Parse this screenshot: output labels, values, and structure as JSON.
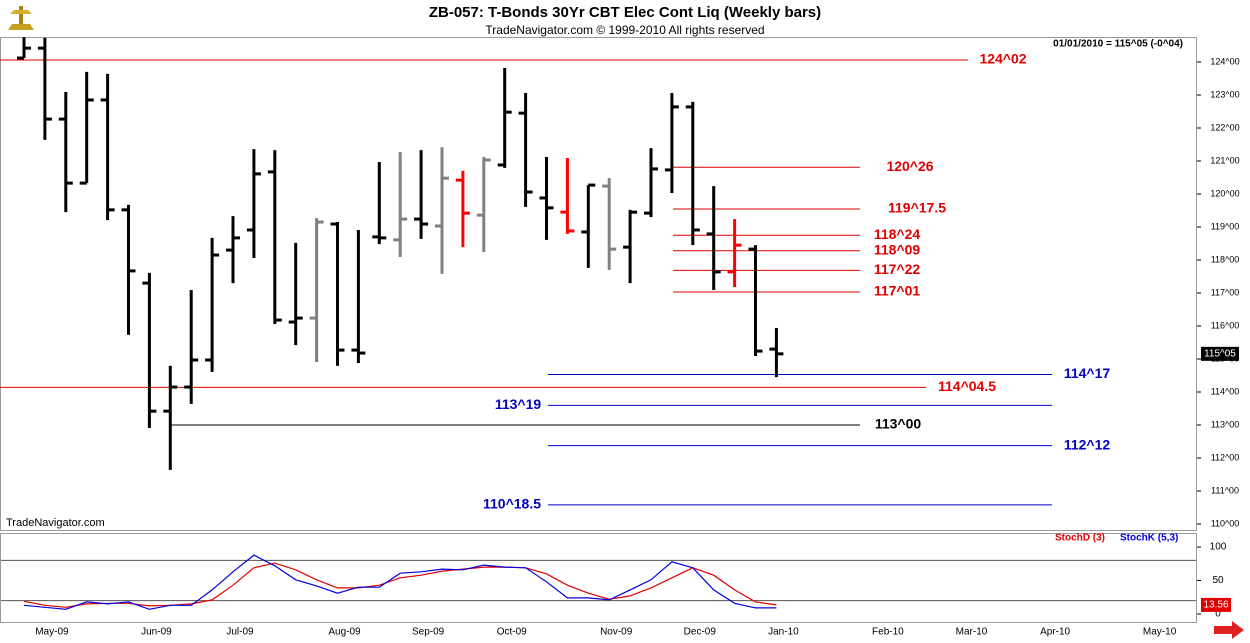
{
  "chart_data": [
    {
      "type": "ohlc",
      "title": "ZB-057:  T-Bonds 30Yr CBT Elec Cont Liq  (Weekly bars)",
      "subtitle": "TradeNavigator.com © 1999-2010 All rights reserved",
      "quote": "01/01/2010 = 115^05 (-0^04)",
      "watermark": "TradeNavigator.com",
      "categories": [
        null,
        "May-09",
        null,
        null,
        null,
        null,
        "Jun-09",
        null,
        null,
        null,
        "Jul-09",
        null,
        null,
        null,
        null,
        "Aug-09",
        null,
        null,
        null,
        "Sep-09",
        null,
        null,
        null,
        "Oct-09",
        null,
        null,
        null,
        null,
        "Nov-09",
        null,
        null,
        null,
        "Dec-09",
        null,
        null,
        null,
        "Jan-10",
        null,
        null,
        null,
        null,
        "Feb-10",
        null,
        null,
        null,
        "Mar-10",
        null,
        null,
        null,
        "Apr-10",
        null,
        null,
        null,
        null,
        "May-10",
        null,
        null
      ],
      "open": [
        124.12,
        124.42,
        122.27,
        120.33,
        122.85,
        119.52,
        117.3,
        113.42,
        114.15,
        114.97,
        118.3,
        118.91,
        120.67,
        116.12,
        116.24,
        119.09,
        115.27,
        118.7,
        118.61,
        119.24,
        119.03,
        120.42,
        119.36,
        120.88,
        122.45,
        119.88,
        119.45,
        118.85,
        120.24,
        118.39,
        119.42,
        120.73,
        122.64,
        118.79,
        117.64,
        118.33,
        115.3,
        null,
        null,
        null,
        null,
        null,
        null,
        null,
        null,
        null,
        null,
        null,
        null,
        null,
        null,
        null,
        null,
        null,
        null,
        null,
        null
      ],
      "high": [
        124.75,
        124.73,
        123.09,
        123.7,
        123.64,
        119.67,
        117.61,
        114.79,
        117.09,
        118.67,
        119.33,
        121.36,
        121.33,
        118.52,
        119.27,
        119.15,
        118.91,
        120.97,
        121.27,
        121.33,
        121.42,
        120.7,
        121.12,
        123.82,
        123.06,
        121.12,
        121.09,
        120.27,
        120.48,
        119.52,
        121.39,
        123.06,
        122.79,
        120.24,
        119.24,
        118.45,
        115.94,
        null,
        null,
        null,
        null,
        null,
        null,
        null,
        null,
        null,
        null,
        null,
        null,
        null,
        null,
        null,
        null,
        null,
        null,
        null,
        null
      ],
      "low": [
        124.12,
        121.64,
        119.45,
        120.33,
        119.21,
        115.73,
        112.91,
        111.64,
        113.64,
        114.61,
        117.3,
        118.06,
        116.06,
        115.42,
        114.91,
        114.79,
        114.88,
        118.48,
        118.09,
        118.64,
        117.58,
        118.39,
        118.24,
        120.79,
        119.61,
        118.61,
        118.79,
        117.76,
        117.7,
        117.3,
        119.3,
        120.03,
        118.45,
        117.09,
        117.18,
        115.09,
        114.45,
        null,
        null,
        null,
        null,
        null,
        null,
        null,
        null,
        null,
        null,
        null,
        null,
        null,
        null,
        null,
        null,
        null,
        null,
        null,
        null
      ],
      "close": [
        124.42,
        122.27,
        120.33,
        122.85,
        119.52,
        117.67,
        113.42,
        114.15,
        114.97,
        118.15,
        118.67,
        120.61,
        116.18,
        116.24,
        119.15,
        115.27,
        115.18,
        118.67,
        119.24,
        119.09,
        120.48,
        119.42,
        121.03,
        122.48,
        120.06,
        119.58,
        118.88,
        120.27,
        118.33,
        119.45,
        120.76,
        122.64,
        118.91,
        117.64,
        118.45,
        115.24,
        115.15625,
        null,
        null,
        null,
        null,
        null,
        null,
        null,
        null,
        null,
        null,
        null,
        null,
        null,
        null,
        null,
        null,
        null,
        null,
        null,
        null
      ],
      "colors": [
        "#000000",
        "#000000",
        "#000000",
        "#000000",
        "#000000",
        "#000000",
        "#000000",
        "#000000",
        "#000000",
        "#000000",
        "#000000",
        "#000000",
        "#000000",
        "#000000",
        "#808080",
        "#000000",
        "#000000",
        "#000000",
        "#808080",
        "#000000",
        "#808080",
        "#ff0000",
        "#808080",
        "#000000",
        "#000000",
        "#000000",
        "#ff0000",
        "#000000",
        "#808080",
        "#000000",
        "#000000",
        "#000000",
        "#000000",
        "#000000",
        "#ff0000",
        "#000000",
        "#000000",
        null,
        null,
        null,
        null,
        null,
        null,
        null,
        null,
        null,
        null,
        null,
        null,
        null,
        null,
        null,
        null,
        null,
        null,
        null,
        null
      ],
      "levels": {
        "values": [
          124.0625,
          120.8125,
          119.546875,
          118.75,
          118.28125,
          117.6875,
          117.03125,
          114.53125,
          114.140625,
          113.59375,
          113.0,
          112.375,
          110.578125
        ],
        "value_labels": [
          "124^02",
          "120^26",
          "119^17.5",
          "118^24",
          "118^09",
          "117^22",
          "117^01",
          "114^17",
          "114^04.5",
          "113^19",
          "113^00",
          "112^12",
          "110^18.5"
        ],
        "colors": [
          "#e00000",
          "#e00000",
          "#e00000",
          "#e00000",
          "#e00000",
          "#e00000",
          "#e00000",
          "#0000c0",
          "#e00000",
          "#0000c0",
          "#000000",
          "#0000c0",
          "#0000c0"
        ]
      },
      "last_price": {
        "value": 115.15625,
        "label": "115^05"
      },
      "ylim": [
        109.8,
        124.75
      ],
      "yticks": [
        {
          "value": 110,
          "label": "110^00"
        },
        {
          "value": 111,
          "label": "111^00"
        },
        {
          "value": 112,
          "label": "112^00"
        },
        {
          "value": 113,
          "label": "113^00"
        },
        {
          "value": 114,
          "label": "114^00"
        },
        {
          "value": 115,
          "label": "115^00"
        },
        {
          "value": 116,
          "label": "116^00"
        },
        {
          "value": 117,
          "label": "117^00"
        },
        {
          "value": 118,
          "label": "118^00"
        },
        {
          "value": 119,
          "label": "119^00"
        },
        {
          "value": 120,
          "label": "120^00"
        },
        {
          "value": 121,
          "label": "121^00"
        },
        {
          "value": 122,
          "label": "122^00"
        },
        {
          "value": 123,
          "label": "123^00"
        },
        {
          "value": 124,
          "label": "124^00"
        }
      ]
    },
    {
      "type": "line",
      "series": [
        {
          "name": "StochD (3)",
          "color": "#e00000",
          "values": [
            19,
            13,
            10,
            15,
            16,
            16,
            12,
            13,
            15,
            21,
            43,
            69,
            76,
            66,
            51,
            39,
            39,
            43,
            54,
            58,
            64,
            67,
            70,
            70,
            69,
            60,
            43,
            31,
            22,
            27,
            39,
            54,
            69,
            58,
            36,
            18,
            13.56,
            null,
            null,
            null,
            null,
            null,
            null,
            null,
            null,
            null,
            null,
            null,
            null,
            null,
            null,
            null,
            null,
            null,
            null,
            null,
            null
          ]
        },
        {
          "name": "StochK (5,3)",
          "color": "#0000e0",
          "values": [
            13,
            10,
            7,
            18,
            15,
            18,
            7,
            13,
            13,
            36,
            63,
            88,
            72,
            51,
            42,
            31,
            40,
            40,
            61,
            63,
            67,
            66,
            73,
            70,
            69,
            48,
            24,
            24,
            21,
            36,
            51,
            78,
            69,
            36,
            16,
            9,
            9,
            null,
            null,
            null,
            null,
            null,
            null,
            null,
            null,
            null,
            null,
            null,
            null,
            null,
            null,
            null,
            null,
            null,
            null,
            null,
            null
          ]
        }
      ],
      "hlines": [
        20,
        80
      ],
      "ylim": [
        -12,
        121
      ],
      "yticks": [
        0,
        50,
        100
      ]
    }
  ]
}
